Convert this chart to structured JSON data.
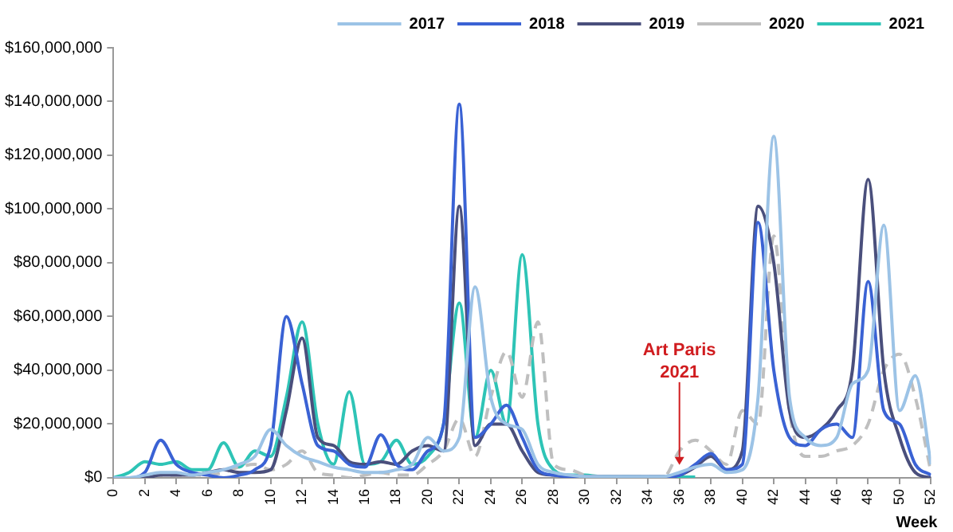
{
  "chart_data": {
    "type": "line",
    "xlabel": "Week",
    "x": [
      0,
      1,
      2,
      3,
      4,
      5,
      6,
      7,
      8,
      9,
      10,
      11,
      12,
      13,
      14,
      15,
      16,
      17,
      18,
      19,
      20,
      21,
      22,
      23,
      24,
      25,
      26,
      27,
      28,
      29,
      30,
      31,
      32,
      33,
      34,
      35,
      36,
      37,
      38,
      39,
      40,
      41,
      42,
      43,
      44,
      45,
      46,
      47,
      48,
      49,
      50,
      51,
      52
    ],
    "xlim": [
      0,
      52
    ],
    "xticks": [
      0,
      2,
      4,
      6,
      8,
      10,
      12,
      14,
      16,
      18,
      20,
      22,
      24,
      26,
      28,
      30,
      32,
      34,
      36,
      38,
      40,
      42,
      44,
      46,
      48,
      50,
      52
    ],
    "ylim": [
      0,
      160000000
    ],
    "yticks": [
      {
        "value": 0,
        "label": "$0"
      },
      {
        "value": 20000000,
        "label": "$20,000,000"
      },
      {
        "value": 40000000,
        "label": "$40,000,000"
      },
      {
        "value": 60000000,
        "label": "$60,000,000"
      },
      {
        "value": 80000000,
        "label": "$80,000,000"
      },
      {
        "value": 100000000,
        "label": "$100,000,000"
      },
      {
        "value": 120000000,
        "label": "$120,000,000"
      },
      {
        "value": 140000000,
        "label": "$140,000,000"
      },
      {
        "value": 160000000,
        "label": "$160,000,000"
      }
    ],
    "grid": false,
    "legend": "top",
    "marker": "none",
    "annotations": [
      {
        "text": "Art Paris 2021",
        "x": 36,
        "y": 3000000
      }
    ],
    "series": [
      {
        "name": "2017",
        "color": "#9cc3e6",
        "line_style": "solid",
        "values": [
          0,
          0,
          1000000,
          2000000,
          2000000,
          1000000,
          2000000,
          3000000,
          5000000,
          8000000,
          18000000,
          12000000,
          8000000,
          6000000,
          4000000,
          3000000,
          2000000,
          2000000,
          3000000,
          5000000,
          15000000,
          10000000,
          15000000,
          71000000,
          30000000,
          20000000,
          18000000,
          5000000,
          2000000,
          1000000,
          500000,
          500000,
          500000,
          500000,
          500000,
          500000,
          2000000,
          4000000,
          5000000,
          2000000,
          3000000,
          30000000,
          127000000,
          30000000,
          15000000,
          12000000,
          15000000,
          35000000,
          40000000,
          94000000,
          25000000,
          38000000,
          5000000
        ]
      },
      {
        "name": "2018",
        "color": "#3a62d4",
        "line_style": "solid",
        "values": [
          0,
          0,
          2000000,
          14000000,
          5000000,
          2000000,
          1000000,
          0,
          1000000,
          3000000,
          12000000,
          60000000,
          35000000,
          12000000,
          10000000,
          5000000,
          4000000,
          16000000,
          5000000,
          3000000,
          10000000,
          20000000,
          139000000,
          15000000,
          20000000,
          27000000,
          15000000,
          3000000,
          1000000,
          500000,
          300000,
          300000,
          300000,
          300000,
          300000,
          300000,
          1000000,
          5000000,
          9000000,
          3000000,
          5000000,
          95000000,
          40000000,
          15000000,
          12000000,
          18000000,
          20000000,
          15000000,
          73000000,
          25000000,
          20000000,
          5000000,
          1000000
        ]
      },
      {
        "name": "2019",
        "color": "#4a4f7c",
        "line_style": "solid",
        "values": [
          0,
          0,
          0,
          1000000,
          1000000,
          1000000,
          2000000,
          3000000,
          2000000,
          2000000,
          3000000,
          25000000,
          52000000,
          15000000,
          12000000,
          6000000,
          5000000,
          6000000,
          5000000,
          10000000,
          12000000,
          10000000,
          101000000,
          12000000,
          20000000,
          20000000,
          10000000,
          2000000,
          1000000,
          500000,
          500000,
          500000,
          500000,
          500000,
          500000,
          500000,
          1000000,
          4000000,
          8000000,
          3000000,
          10000000,
          101000000,
          80000000,
          25000000,
          15000000,
          18000000,
          25000000,
          40000000,
          111000000,
          40000000,
          15000000,
          2000000,
          0
        ]
      },
      {
        "name": "2020",
        "color": "#bfbfbf",
        "line_style": "dashed",
        "values": [
          0,
          0,
          0,
          1000000,
          1000000,
          1000000,
          1000000,
          2000000,
          4000000,
          5000000,
          3000000,
          5000000,
          10000000,
          2000000,
          1000000,
          0,
          1000000,
          2000000,
          1000000,
          1000000,
          5000000,
          10000000,
          22000000,
          8000000,
          30000000,
          47000000,
          30000000,
          58000000,
          5000000,
          3000000,
          1000000,
          500000,
          500000,
          500000,
          500000,
          500000,
          10000000,
          14000000,
          10000000,
          5000000,
          25000000,
          20000000,
          90000000,
          25000000,
          8000000,
          8000000,
          10000000,
          12000000,
          20000000,
          40000000,
          46000000,
          30000000,
          2000000
        ]
      },
      {
        "name": "2021",
        "color": "#2ec4b6",
        "line_style": "solid",
        "values": [
          0,
          2000000,
          6000000,
          5000000,
          6000000,
          3000000,
          3000000,
          13000000,
          4000000,
          10000000,
          8000000,
          30000000,
          58000000,
          20000000,
          5000000,
          32000000,
          5000000,
          6000000,
          14000000,
          5000000,
          8000000,
          20000000,
          65000000,
          15000000,
          40000000,
          20000000,
          83000000,
          20000000,
          3000000,
          1000000,
          1000000,
          500000,
          500000,
          500000,
          300000,
          300000,
          300000,
          300000,
          null,
          null,
          null,
          null,
          null,
          null,
          null,
          null,
          null,
          null,
          null,
          null,
          null,
          null,
          null
        ]
      }
    ]
  }
}
